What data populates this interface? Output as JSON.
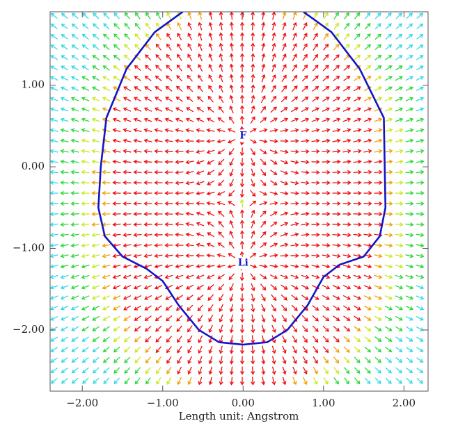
{
  "chart_data": {
    "type": "quiver",
    "xlabel": "Length unit: Angstrom",
    "xlim": [
      -2.4,
      2.3
    ],
    "ylim": [
      -2.75,
      1.9
    ],
    "xticks": [
      {
        "value": -2,
        "label": "−2.00"
      },
      {
        "value": -1,
        "label": "−1.00"
      },
      {
        "value": 0,
        "label": "0.00"
      },
      {
        "value": 1,
        "label": "1.00"
      },
      {
        "value": 2,
        "label": "2.00"
      }
    ],
    "yticks": [
      {
        "value": -2,
        "label": "−2.00"
      },
      {
        "value": -1,
        "label": "−1.00"
      },
      {
        "value": 0,
        "label": "0.00"
      },
      {
        "value": 1,
        "label": "1.00"
      }
    ],
    "atoms": [
      {
        "label": "F",
        "x": 0,
        "y": 0.38
      },
      {
        "label": "Li",
        "x": 0,
        "y": -1.18
      }
    ],
    "contour": {
      "color": "#1414c8",
      "x": [
        -0.75,
        -1.1,
        -1.45,
        -1.7,
        -1.77,
        -1.8,
        -1.72,
        -1.5,
        -1.2,
        -1.0,
        -0.8,
        -0.55,
        -0.3,
        0,
        0.3,
        0.55,
        0.8,
        1.0,
        1.2,
        1.5,
        1.7,
        1.77,
        1.75,
        1.45,
        1.1,
        0.75
      ],
      "y": [
        1.9,
        1.65,
        1.2,
        0.6,
        0,
        -0.5,
        -0.85,
        -1.1,
        -1.25,
        -1.4,
        -1.7,
        -2.0,
        -2.15,
        -2.18,
        -2.15,
        -2.0,
        -1.7,
        -1.35,
        -1.2,
        -1.1,
        -0.85,
        -0.5,
        0.6,
        1.2,
        1.65,
        1.9
      ]
    }
  }
}
